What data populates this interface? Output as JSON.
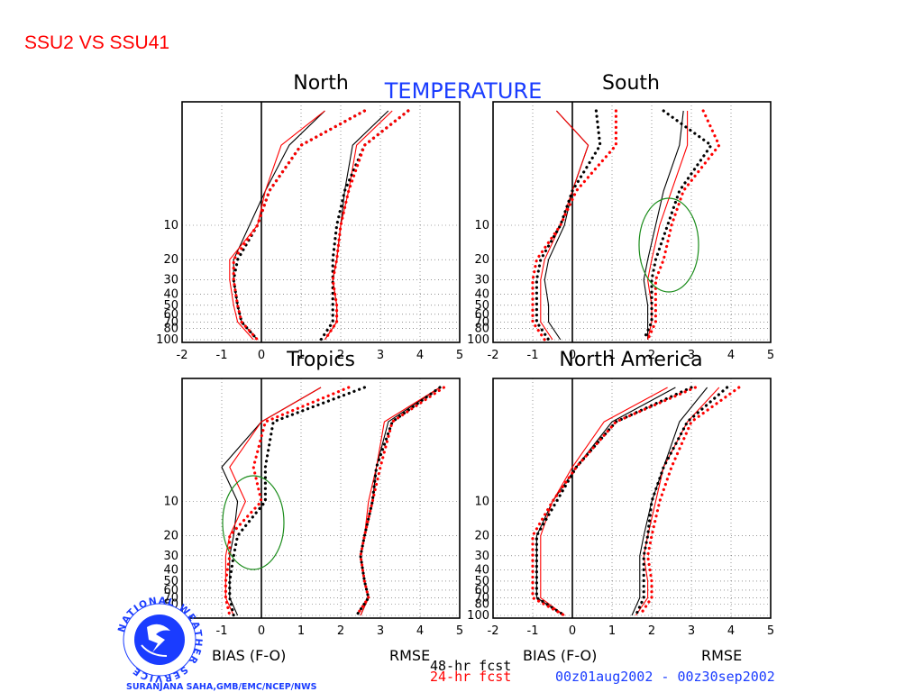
{
  "slide_title": "SSU2 VS SSU41",
  "figure_title": "TEMPERATURE",
  "x_labels": {
    "bias": "BIAS (F-O)",
    "rmse": "RMSE"
  },
  "legend": {
    "black": "48-hr fcst",
    "red": "24-hr fcst"
  },
  "date_range": "00z01aug2002 - 00z30sep2002",
  "credit": "SURANJANA SAHA,GMB/EMC/NCEP/NWS",
  "logo_text": "NATIONAL WEATHER SERVICE",
  "colors": {
    "black_series": "#000000",
    "red_series": "#ff0000",
    "title_blue": "#1a3cff",
    "slide_title": "#ff0000",
    "circle": "#1a8c1a"
  },
  "chart_data": [
    {
      "type": "line",
      "title": "North",
      "xlim": [
        -2,
        5
      ],
      "x_ticks": [
        "-2",
        "-1",
        "0",
        "1",
        "2",
        "3",
        "4",
        "5"
      ],
      "ylabel_scale": "log pressure (hPa)",
      "y_ticks": [
        "10",
        "20",
        "30",
        "40",
        "50",
        "60",
        "70",
        "80",
        "100"
      ],
      "y_levels": [
        1,
        2,
        5,
        10,
        20,
        30,
        50,
        70,
        100
      ],
      "series": [
        {
          "name": "48-hr fcst",
          "color": "#000000",
          "style": "solid",
          "stat": "BIAS",
          "values": [
            1.6,
            0.7,
            0.1,
            -0.3,
            -0.7,
            -0.7,
            -0.6,
            -0.5,
            -0.1
          ]
        },
        {
          "name": "24-hr fcst",
          "color": "#ff0000",
          "style": "solid",
          "stat": "BIAS",
          "values": [
            1.6,
            0.5,
            0.1,
            -0.1,
            -0.8,
            -0.8,
            -0.7,
            -0.6,
            -0.2
          ]
        },
        {
          "name": "48-hr fcst",
          "color": "#000000",
          "style": "dotted",
          "stat": "BIAS",
          "values": [
            2.6,
            1.0,
            0.2,
            -0.1,
            -0.6,
            -0.7,
            -0.6,
            -0.5,
            -0.1
          ]
        },
        {
          "name": "24-hr fcst",
          "color": "#ff0000",
          "style": "dotted",
          "stat": "BIAS",
          "values": [
            2.6,
            1.0,
            0.2,
            -0.1,
            -0.7,
            -0.7,
            -0.6,
            -0.5,
            -0.1
          ]
        },
        {
          "name": "48-hr fcst",
          "color": "#000000",
          "style": "solid",
          "stat": "RMSE",
          "values": [
            3.2,
            2.3,
            2.1,
            2.0,
            1.9,
            1.8,
            1.9,
            1.9,
            1.6
          ]
        },
        {
          "name": "24-hr fcst",
          "color": "#ff0000",
          "style": "solid",
          "stat": "RMSE",
          "values": [
            3.3,
            2.4,
            2.2,
            2.0,
            1.9,
            1.8,
            1.9,
            1.9,
            1.6
          ]
        },
        {
          "name": "48-hr fcst",
          "color": "#000000",
          "style": "dotted",
          "stat": "RMSE",
          "values": [
            3.7,
            2.6,
            2.1,
            1.9,
            1.8,
            1.8,
            1.8,
            1.8,
            1.5
          ]
        },
        {
          "name": "24-hr fcst",
          "color": "#ff0000",
          "style": "dotted",
          "stat": "RMSE",
          "values": [
            3.7,
            2.6,
            2.2,
            2.0,
            1.9,
            1.8,
            1.9,
            1.9,
            1.6
          ]
        }
      ]
    },
    {
      "type": "line",
      "title": "South",
      "xlim": [
        -2,
        5
      ],
      "x_ticks": [
        "-2",
        "-1",
        "0",
        "1",
        "2",
        "3",
        "4",
        "5"
      ],
      "y_ticks": [
        "10",
        "20",
        "30",
        "40",
        "50",
        "60",
        "70",
        "80",
        "100"
      ],
      "y_levels": [
        1,
        2,
        5,
        10,
        20,
        30,
        50,
        70,
        100
      ],
      "annotation": "green ellipse around RMSE curves near 10-30 hPa",
      "series": [
        {
          "name": "48-hr fcst",
          "color": "#000000",
          "style": "solid",
          "stat": "BIAS",
          "values": [
            -0.4,
            0.4,
            0.0,
            -0.2,
            -0.6,
            -0.7,
            -0.6,
            -0.6,
            -0.3
          ]
        },
        {
          "name": "24-hr fcst",
          "color": "#ff0000",
          "style": "solid",
          "stat": "BIAS",
          "values": [
            -0.4,
            0.4,
            0.0,
            -0.3,
            -0.7,
            -0.8,
            -0.8,
            -0.8,
            -0.5
          ]
        },
        {
          "name": "48-hr fcst",
          "color": "#000000",
          "style": "dotted",
          "stat": "BIAS",
          "values": [
            0.6,
            0.7,
            0.0,
            -0.3,
            -0.8,
            -0.9,
            -0.9,
            -0.9,
            -0.6
          ]
        },
        {
          "name": "24-hr fcst",
          "color": "#ff0000",
          "style": "dotted",
          "stat": "BIAS",
          "values": [
            1.1,
            1.1,
            0.1,
            -0.3,
            -0.9,
            -1.0,
            -1.0,
            -1.0,
            -0.7
          ]
        },
        {
          "name": "48-hr fcst",
          "color": "#000000",
          "style": "solid",
          "stat": "RMSE",
          "values": [
            2.8,
            2.7,
            2.3,
            2.1,
            1.9,
            1.8,
            1.9,
            1.9,
            1.9
          ]
        },
        {
          "name": "24-hr fcst",
          "color": "#ff0000",
          "style": "solid",
          "stat": "RMSE",
          "values": [
            2.9,
            2.9,
            2.5,
            2.2,
            2.0,
            1.9,
            2.0,
            2.0,
            1.9
          ]
        },
        {
          "name": "48-hr fcst",
          "color": "#000000",
          "style": "dotted",
          "stat": "RMSE",
          "values": [
            2.3,
            3.5,
            2.7,
            2.4,
            2.1,
            2.0,
            2.0,
            2.0,
            1.8
          ]
        },
        {
          "name": "24-hr fcst",
          "color": "#ff0000",
          "style": "dotted",
          "stat": "RMSE",
          "values": [
            3.3,
            3.7,
            2.8,
            2.5,
            2.3,
            2.1,
            2.1,
            2.1,
            1.9
          ]
        }
      ]
    },
    {
      "type": "line",
      "title": "Tropics",
      "xlim": [
        -2,
        5
      ],
      "x_ticks": [
        "-2",
        "-1",
        "0",
        "1",
        "2",
        "3",
        "4",
        "5"
      ],
      "y_ticks": [
        "10",
        "20",
        "30",
        "40",
        "50",
        "60",
        "70",
        "80",
        "100"
      ],
      "y_levels": [
        1,
        2,
        5,
        10,
        20,
        30,
        50,
        70,
        100
      ],
      "annotation": "green ellipse around BIAS curves near 10-30 hPa",
      "series": [
        {
          "name": "48-hr fcst",
          "color": "#000000",
          "style": "solid",
          "stat": "BIAS",
          "values": [
            1.5,
            0.0,
            -1.0,
            -0.6,
            -0.7,
            -0.8,
            -0.8,
            -0.8,
            -0.6
          ]
        },
        {
          "name": "24-hr fcst",
          "color": "#ff0000",
          "style": "solid",
          "stat": "BIAS",
          "values": [
            1.5,
            0.0,
            -0.8,
            -0.4,
            -0.8,
            -0.9,
            -0.9,
            -0.9,
            -0.7
          ]
        },
        {
          "name": "48-hr fcst",
          "color": "#000000",
          "style": "dotted",
          "stat": "BIAS",
          "values": [
            2.6,
            0.3,
            0.1,
            0.1,
            -0.6,
            -0.7,
            -0.8,
            -0.8,
            -0.7
          ]
        },
        {
          "name": "24-hr fcst",
          "color": "#ff0000",
          "style": "dotted",
          "stat": "BIAS",
          "values": [
            2.2,
            0.1,
            -0.2,
            0.0,
            -0.8,
            -0.8,
            -0.9,
            -0.9,
            -0.8
          ]
        },
        {
          "name": "48-hr fcst",
          "color": "#000000",
          "style": "solid",
          "stat": "RMSE",
          "values": [
            4.5,
            3.2,
            2.9,
            2.8,
            2.6,
            2.5,
            2.6,
            2.7,
            2.5
          ]
        },
        {
          "name": "24-hr fcst",
          "color": "#ff0000",
          "style": "solid",
          "stat": "RMSE",
          "values": [
            4.5,
            3.1,
            2.9,
            2.7,
            2.6,
            2.5,
            2.6,
            2.7,
            2.5
          ]
        },
        {
          "name": "48-hr fcst",
          "color": "#000000",
          "style": "dotted",
          "stat": "RMSE",
          "values": [
            4.5,
            3.3,
            2.9,
            2.8,
            2.6,
            2.5,
            2.6,
            2.7,
            2.4
          ]
        },
        {
          "name": "24-hr fcst",
          "color": "#ff0000",
          "style": "dotted",
          "stat": "RMSE",
          "values": [
            4.6,
            3.3,
            3.0,
            2.8,
            2.6,
            2.5,
            2.6,
            2.7,
            2.4
          ]
        }
      ]
    },
    {
      "type": "line",
      "title": "North America",
      "xlim": [
        -2,
        5
      ],
      "x_ticks": [
        "-2",
        "-1",
        "0",
        "1",
        "2",
        "3",
        "4",
        "5"
      ],
      "y_ticks": [
        "10",
        "20",
        "30",
        "40",
        "50",
        "60",
        "70",
        "80",
        "100"
      ],
      "y_levels": [
        1,
        2,
        5,
        10,
        20,
        30,
        50,
        70,
        100
      ],
      "series": [
        {
          "name": "48-hr fcst",
          "color": "#000000",
          "style": "solid",
          "stat": "BIAS",
          "values": [
            2.6,
            1.0,
            0.1,
            -0.5,
            -0.9,
            -0.9,
            -0.9,
            -0.9,
            -0.2
          ]
        },
        {
          "name": "24-hr fcst",
          "color": "#ff0000",
          "style": "solid",
          "stat": "BIAS",
          "values": [
            2.4,
            0.8,
            0.0,
            -0.5,
            -0.8,
            -0.8,
            -0.8,
            -0.8,
            -0.2
          ]
        },
        {
          "name": "48-hr fcst",
          "color": "#000000",
          "style": "dotted",
          "stat": "BIAS",
          "values": [
            3.0,
            1.1,
            0.1,
            -0.4,
            -0.9,
            -0.9,
            -0.9,
            -0.9,
            -0.2
          ]
        },
        {
          "name": "24-hr fcst",
          "color": "#ff0000",
          "style": "dotted",
          "stat": "BIAS",
          "values": [
            3.1,
            1.1,
            0.1,
            -0.5,
            -1.0,
            -1.0,
            -1.0,
            -1.0,
            -0.2
          ]
        },
        {
          "name": "48-hr fcst",
          "color": "#000000",
          "style": "solid",
          "stat": "RMSE",
          "values": [
            3.4,
            2.7,
            2.3,
            2.0,
            1.8,
            1.7,
            1.7,
            1.7,
            1.5
          ]
        },
        {
          "name": "24-hr fcst",
          "color": "#ff0000",
          "style": "solid",
          "stat": "RMSE",
          "values": [
            3.7,
            2.9,
            2.3,
            2.1,
            1.9,
            1.8,
            1.9,
            1.9,
            1.6
          ]
        },
        {
          "name": "48-hr fcst",
          "color": "#000000",
          "style": "dotted",
          "stat": "RMSE",
          "values": [
            3.9,
            2.9,
            2.3,
            2.0,
            1.9,
            1.8,
            1.8,
            1.8,
            1.6
          ]
        },
        {
          "name": "24-hr fcst",
          "color": "#ff0000",
          "style": "dotted",
          "stat": "RMSE",
          "values": [
            4.2,
            3.0,
            2.5,
            2.2,
            2.0,
            1.9,
            2.0,
            2.0,
            1.7
          ]
        }
      ]
    }
  ]
}
